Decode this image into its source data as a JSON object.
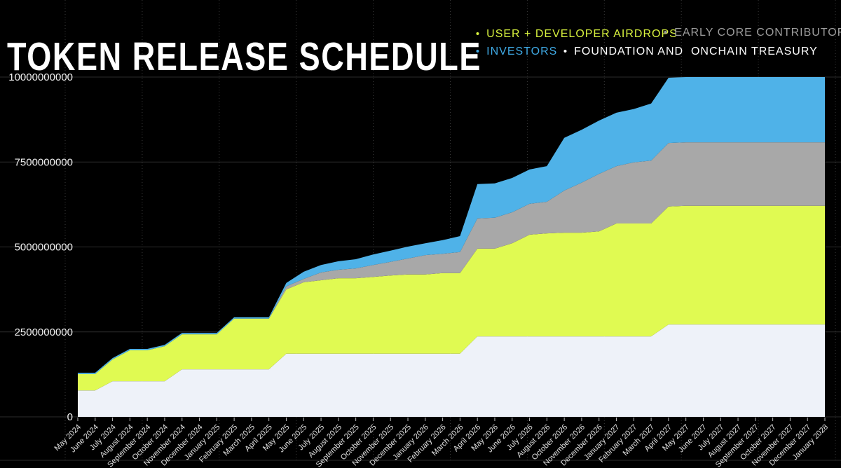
{
  "header": {
    "title": "TOKEN RELEASE SCHEDULE"
  },
  "legend": {
    "items": [
      {
        "label": "USER + DEVELOPER AIRDROPS",
        "color": "#d8f23e"
      },
      {
        "label": "EARLY CORE CONTRIBUTORS",
        "color": "#9e9e9e"
      },
      {
        "label": "INVESTORS",
        "color": "#3fa9e4"
      },
      {
        "label": "FOUNDATION AND  ONCHAIN TREASURY",
        "color": "#ffffff"
      }
    ]
  },
  "colors": {
    "background": "#000000",
    "grid": "#2d2d2d",
    "grid_dotted": "#3a3a3a",
    "axis_text": "#f0f0f0",
    "x_label": "#e0e0e0",
    "tick": "#bbbbbb"
  },
  "chart_data": {
    "type": "area",
    "stacked": true,
    "title": "TOKEN RELEASE SCHEDULE",
    "xlabel": "",
    "ylabel": "",
    "ylim": [
      0,
      10000000000
    ],
    "y_ticks": [
      0,
      2500000000,
      5000000000,
      7500000000,
      10000000000
    ],
    "y_tick_labels": [
      "0",
      "2500000000",
      "5000000000",
      "7500000000",
      "10000000000"
    ],
    "grid": "on",
    "legend_position": "top-right",
    "x_labels": [
      "May 2024",
      "June 2024",
      "July 2024",
      "August 2024",
      "September 2024",
      "October 2024",
      "November 2024",
      "December 2024",
      "January 2025",
      "February 2025",
      "March 2025",
      "April 2025",
      "May 2025",
      "June 2025",
      "July 2025",
      "August 2025",
      "September 2025",
      "October 2025",
      "November 2025",
      "December 2025",
      "January 2026",
      "February 2026",
      "March 2026",
      "April 2026",
      "May 2026",
      "June 2026",
      "July 2026",
      "August 2026",
      "October 2026",
      "November 2026",
      "December 2026",
      "January 2027",
      "February 2027",
      "March 2027",
      "April 2027",
      "May 2027",
      "June 2027",
      "July 2027",
      "August 2027",
      "September 2027",
      "October 2027",
      "November 2027",
      "December 2027",
      "January 2028"
    ],
    "series": [
      {
        "name": "FOUNDATION AND ONCHAIN TREASURY",
        "stack_order": 1,
        "color": "#eef2f9",
        "values": [
          780000000,
          780000000,
          1050000000,
          1050000000,
          1050000000,
          1050000000,
          1400000000,
          1400000000,
          1400000000,
          1400000000,
          1400000000,
          1400000000,
          1860000000,
          1860000000,
          1860000000,
          1860000000,
          1860000000,
          1860000000,
          1860000000,
          1860000000,
          1860000000,
          1860000000,
          1860000000,
          2370000000,
          2370000000,
          2370000000,
          2370000000,
          2370000000,
          2370000000,
          2370000000,
          2370000000,
          2370000000,
          2370000000,
          2370000000,
          2720000000,
          2720000000,
          2720000000,
          2720000000,
          2720000000,
          2720000000,
          2720000000,
          2720000000,
          2720000000,
          2720000000
        ]
      },
      {
        "name": "USER + DEVELOPER AIRDROPS",
        "stack_order": 2,
        "color": "#e0fa52",
        "values": [
          480000000,
          480000000,
          640000000,
          910000000,
          910000000,
          1030000000,
          1030000000,
          1030000000,
          1030000000,
          1490000000,
          1490000000,
          1490000000,
          1890000000,
          2100000000,
          2160000000,
          2220000000,
          2220000000,
          2260000000,
          2300000000,
          2330000000,
          2330000000,
          2370000000,
          2370000000,
          2580000000,
          2580000000,
          2740000000,
          2990000000,
          3030000000,
          3050000000,
          3050000000,
          3090000000,
          3320000000,
          3320000000,
          3320000000,
          3470000000,
          3490000000,
          3490000000,
          3490000000,
          3490000000,
          3490000000,
          3490000000,
          3490000000,
          3490000000,
          3490000000
        ]
      },
      {
        "name": "EARLY CORE CONTRIBUTORS",
        "stack_order": 3,
        "color": "#a8a8a8",
        "values": [
          0,
          0,
          0,
          0,
          0,
          0,
          0,
          0,
          0,
          0,
          0,
          0,
          90000000,
          100000000,
          230000000,
          250000000,
          290000000,
          350000000,
          400000000,
          470000000,
          570000000,
          570000000,
          620000000,
          890000000,
          910000000,
          910000000,
          910000000,
          930000000,
          1240000000,
          1470000000,
          1690000000,
          1690000000,
          1800000000,
          1850000000,
          1870000000,
          1870000000,
          1870000000,
          1870000000,
          1870000000,
          1870000000,
          1870000000,
          1870000000,
          1870000000,
          1870000000
        ]
      },
      {
        "name": "INVESTORS",
        "stack_order": 4,
        "color": "#4fb2e8",
        "values": [
          40000000,
          40000000,
          40000000,
          40000000,
          40000000,
          40000000,
          40000000,
          40000000,
          40000000,
          40000000,
          40000000,
          40000000,
          100000000,
          210000000,
          220000000,
          250000000,
          270000000,
          310000000,
          330000000,
          350000000,
          350000000,
          400000000,
          470000000,
          1010000000,
          1010000000,
          1010000000,
          1010000000,
          1050000000,
          1550000000,
          1560000000,
          1570000000,
          1570000000,
          1570000000,
          1680000000,
          1920000000,
          1920000000,
          1920000000,
          1920000000,
          1920000000,
          1920000000,
          1920000000,
          1920000000,
          1920000000,
          1920000000
        ]
      }
    ]
  }
}
